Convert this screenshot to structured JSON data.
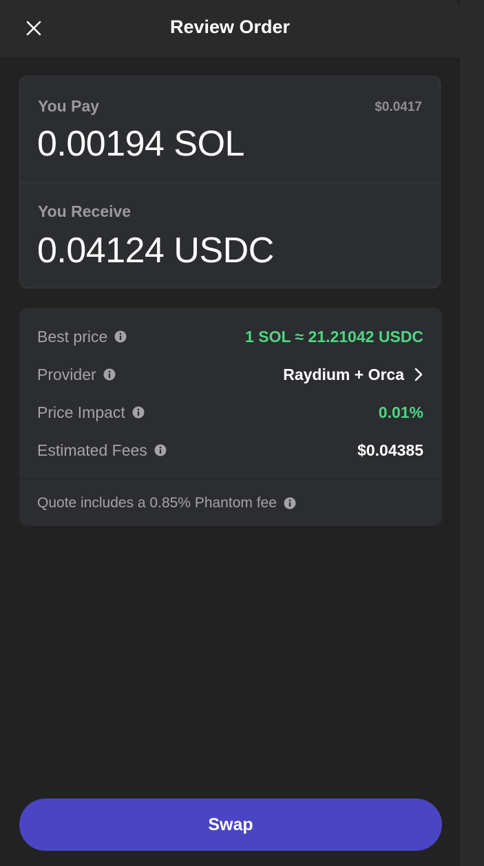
{
  "header": {
    "title": "Review Order",
    "close_icon": "close-icon"
  },
  "pay": {
    "label": "You Pay",
    "usd_value": "$0.0417",
    "amount": "0.00194 SOL"
  },
  "receive": {
    "label": "You Receive",
    "amount": "0.04124 USDC"
  },
  "details": {
    "best_price": {
      "label": "Best price",
      "value": "1 SOL ≈ 21.21042 USDC"
    },
    "provider": {
      "label": "Provider",
      "value": "Raydium + Orca"
    },
    "price_impact": {
      "label": "Price Impact",
      "value": "0.01%"
    },
    "estimated_fees": {
      "label": "Estimated Fees",
      "value": "$0.04385"
    },
    "fee_note": "Quote includes a 0.85% Phantom fee"
  },
  "actions": {
    "swap_label": "Swap"
  },
  "colors": {
    "accent": "#4a46c3",
    "positive": "#4fd683",
    "background": "#222222",
    "card": "#2c2d30"
  }
}
